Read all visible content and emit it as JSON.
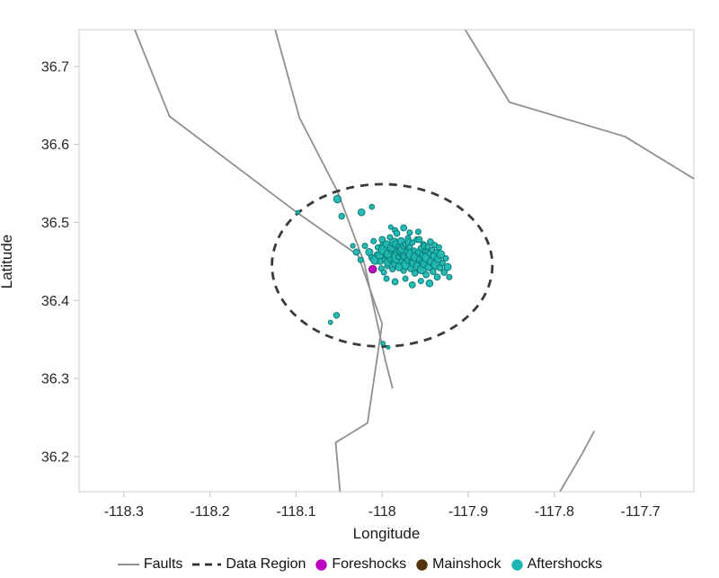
{
  "chart_data": {
    "type": "scatter",
    "title": "",
    "xlabel": "Longitude",
    "ylabel": "Latitude",
    "xlim": [
      -118.352,
      -117.638
    ],
    "ylim": [
      36.155,
      36.747
    ],
    "grid": false,
    "xticks": {
      "values": [
        -118.3,
        -118.2,
        -118.1,
        -118.0,
        -117.9,
        -117.8,
        -117.7
      ],
      "labels": [
        "-118.3",
        "-118.2",
        "-118.1",
        "-118",
        "-117.9",
        "-117.8",
        "-117.7"
      ]
    },
    "yticks": {
      "values": [
        36.2,
        36.3,
        36.4,
        36.5,
        36.6,
        36.7
      ],
      "labels": [
        "36.2",
        "36.3",
        "36.4",
        "36.5",
        "36.6",
        "36.7"
      ]
    },
    "colors": {
      "frame": "#d4d4d4",
      "tick": "#c9c9c9",
      "tick_label": "#2b2b2b",
      "fault": "#909090",
      "data_region": "#3a3a3a",
      "foreshocks": "#c000c0",
      "mainshock": "#54330e",
      "aftershocks": "#1db6b0",
      "aftershocks_edge": "#0b7d78",
      "foreshocks_edge": "#7a007a",
      "mainshock_edge": "#31190a"
    },
    "faults": [
      [
        [
          -118.287,
          36.746
        ],
        [
          -118.247,
          36.636
        ],
        [
          -118.098,
          36.512
        ],
        [
          -118.028,
          36.458
        ],
        [
          -118.0,
          36.37
        ],
        [
          -118.017,
          36.243
        ],
        [
          -118.054,
          36.218
        ],
        [
          -118.049,
          36.156
        ]
      ],
      [
        [
          -118.124,
          36.746
        ],
        [
          -118.096,
          36.634
        ],
        [
          -118.052,
          36.54
        ],
        [
          -118.021,
          36.449
        ],
        [
          -117.996,
          36.322
        ],
        [
          -117.988,
          36.288
        ]
      ],
      [
        [
          -117.903,
          36.746
        ],
        [
          -117.852,
          36.654
        ],
        [
          -117.718,
          36.61
        ],
        [
          -117.638,
          36.556
        ]
      ],
      [
        [
          -117.793,
          36.156
        ],
        [
          -117.767,
          36.205
        ],
        [
          -117.754,
          36.232
        ]
      ]
    ],
    "data_region_ellipse": {
      "center": [
        -118.0,
        36.445
      ],
      "rx": 0.128,
      "ry": 0.104,
      "dash": "9 7"
    },
    "series": [
      {
        "name": "Foreshocks",
        "color": "#c000c0",
        "z": 3,
        "points_lon_lat_r": [
          [
            -118.011,
            36.44,
            4.2
          ]
        ]
      },
      {
        "name": "Mainshock",
        "color": "#54330e",
        "z": 1,
        "points_lon_lat_r": [
          [
            -117.98,
            36.457,
            7.5
          ]
        ]
      },
      {
        "name": "Aftershocks",
        "color": "#1db6b0",
        "z": 2,
        "points_lon_lat_r": [
          [
            -118.098,
            36.513,
            2.2
          ],
          [
            -118.052,
            36.53,
            4.2
          ],
          [
            -118.047,
            36.508,
            3.2
          ],
          [
            -118.024,
            36.513,
            3.8
          ],
          [
            -118.012,
            36.52,
            2.8
          ],
          [
            -118.053,
            36.381,
            3.2
          ],
          [
            -118.06,
            36.372,
            2.4
          ],
          [
            -117.999,
            36.345,
            2.4
          ],
          [
            -117.993,
            36.34,
            2.0
          ],
          [
            -118.034,
            36.47,
            2.6
          ],
          [
            -118.03,
            36.462,
            3.4
          ],
          [
            -118.025,
            36.452,
            3.0
          ],
          [
            -118.02,
            36.47,
            3.0
          ],
          [
            -118.015,
            36.462,
            4.0
          ],
          [
            -118.012,
            36.455,
            3.4
          ],
          [
            -118.01,
            36.476,
            3.0
          ],
          [
            -118.008,
            36.452,
            5.0
          ],
          [
            -118.006,
            36.459,
            3.0
          ],
          [
            -118.005,
            36.468,
            3.0
          ],
          [
            -118.003,
            36.458,
            4.4
          ],
          [
            -118.002,
            36.45,
            3.4
          ],
          [
            -118.001,
            36.441,
            3.0
          ],
          [
            -118.0,
            36.478,
            3.4
          ],
          [
            -117.999,
            36.47,
            4.0
          ],
          [
            -117.998,
            36.465,
            5.8
          ],
          [
            -117.998,
            36.436,
            3.0
          ],
          [
            -117.997,
            36.452,
            3.0
          ],
          [
            -117.996,
            36.458,
            3.0
          ],
          [
            -117.995,
            36.472,
            4.0
          ],
          [
            -117.995,
            36.428,
            3.0
          ],
          [
            -117.994,
            36.444,
            3.0
          ],
          [
            -117.993,
            36.449,
            4.4
          ],
          [
            -117.992,
            36.46,
            5.4
          ],
          [
            -117.991,
            36.481,
            3.0
          ],
          [
            -117.99,
            36.494,
            2.5
          ],
          [
            -117.99,
            36.464,
            3.0
          ],
          [
            -117.99,
            36.452,
            3.4
          ],
          [
            -117.989,
            36.468,
            4.4
          ],
          [
            -117.988,
            36.44,
            3.0
          ],
          [
            -117.987,
            36.458,
            3.0
          ],
          [
            -117.987,
            36.449,
            3.4
          ],
          [
            -117.986,
            36.474,
            5.0
          ],
          [
            -117.985,
            36.49,
            3.0
          ],
          [
            -117.985,
            36.447,
            4.0
          ],
          [
            -117.985,
            36.424,
            3.4
          ],
          [
            -117.984,
            36.472,
            4.0
          ],
          [
            -117.984,
            36.462,
            3.0
          ],
          [
            -117.983,
            36.486,
            3.4
          ],
          [
            -117.982,
            36.455,
            6.4
          ],
          [
            -117.981,
            36.469,
            3.0
          ],
          [
            -117.981,
            36.456,
            3.0
          ],
          [
            -117.98,
            36.443,
            4.4
          ],
          [
            -117.979,
            36.46,
            3.0
          ],
          [
            -117.978,
            36.476,
            4.0
          ],
          [
            -117.978,
            36.464,
            5.0
          ],
          [
            -117.977,
            36.45,
            3.4
          ],
          [
            -117.976,
            36.466,
            5.0
          ],
          [
            -117.975,
            36.493,
            3.4
          ],
          [
            -117.975,
            36.47,
            3.4
          ],
          [
            -117.975,
            36.438,
            3.0
          ],
          [
            -117.974,
            36.457,
            4.0
          ],
          [
            -117.973,
            36.472,
            3.0
          ],
          [
            -117.973,
            36.428,
            3.0
          ],
          [
            -117.972,
            36.446,
            5.4
          ],
          [
            -117.971,
            36.462,
            3.4
          ],
          [
            -117.97,
            36.48,
            3.0
          ],
          [
            -117.969,
            36.475,
            4.0
          ],
          [
            -117.969,
            36.452,
            4.4
          ],
          [
            -117.968,
            36.487,
            3.0
          ],
          [
            -117.968,
            36.468,
            3.0
          ],
          [
            -117.967,
            36.441,
            3.4
          ],
          [
            -117.966,
            36.459,
            5.8
          ],
          [
            -117.966,
            36.45,
            3.0
          ],
          [
            -117.965,
            36.474,
            3.0
          ],
          [
            -117.965,
            36.42,
            3.4
          ],
          [
            -117.964,
            36.448,
            4.0
          ],
          [
            -117.963,
            36.464,
            3.0
          ],
          [
            -117.963,
            36.455,
            3.4
          ],
          [
            -117.962,
            36.435,
            3.4
          ],
          [
            -117.961,
            36.456,
            5.0
          ],
          [
            -117.96,
            36.478,
            3.0
          ],
          [
            -117.959,
            36.444,
            4.4
          ],
          [
            -117.958,
            36.488,
            3.0
          ],
          [
            -117.958,
            36.461,
            3.0
          ],
          [
            -117.957,
            36.478,
            3.4
          ],
          [
            -117.957,
            36.462,
            4.0
          ],
          [
            -117.956,
            36.452,
            4.0
          ],
          [
            -117.955,
            36.467,
            3.0
          ],
          [
            -117.955,
            36.425,
            3.0
          ],
          [
            -117.954,
            36.449,
            3.0
          ],
          [
            -117.954,
            36.44,
            5.0
          ],
          [
            -117.953,
            36.458,
            3.4
          ],
          [
            -117.952,
            36.472,
            3.0
          ],
          [
            -117.951,
            36.47,
            3.4
          ],
          [
            -117.951,
            36.447,
            4.4
          ],
          [
            -117.95,
            36.463,
            3.0
          ],
          [
            -117.949,
            36.433,
            3.4
          ],
          [
            -117.948,
            36.462,
            3.0
          ],
          [
            -117.948,
            36.455,
            5.4
          ],
          [
            -117.947,
            36.469,
            3.0
          ],
          [
            -117.946,
            36.443,
            4.0
          ],
          [
            -117.945,
            36.46,
            3.0
          ],
          [
            -117.945,
            36.422,
            3.8
          ],
          [
            -117.944,
            36.475,
            3.4
          ],
          [
            -117.943,
            36.45,
            4.4
          ],
          [
            -117.942,
            36.465,
            3.0
          ],
          [
            -117.941,
            36.437,
            3.4
          ],
          [
            -117.94,
            36.457,
            4.0
          ],
          [
            -117.939,
            36.471,
            3.0
          ],
          [
            -117.938,
            36.446,
            5.0
          ],
          [
            -117.937,
            36.462,
            3.0
          ],
          [
            -117.936,
            36.43,
            3.4
          ],
          [
            -117.935,
            36.453,
            4.0
          ],
          [
            -117.934,
            36.468,
            3.0
          ],
          [
            -117.933,
            36.442,
            3.4
          ],
          [
            -117.932,
            36.459,
            4.4
          ],
          [
            -117.93,
            36.448,
            3.0
          ],
          [
            -117.928,
            36.436,
            3.4
          ],
          [
            -117.926,
            36.454,
            3.0
          ],
          [
            -117.924,
            36.443,
            4.0
          ],
          [
            -117.922,
            36.43,
            3.0
          ]
        ]
      }
    ],
    "legend": {
      "position": "bottom",
      "items": [
        {
          "label": "Faults",
          "swatch": "line",
          "color": "#909090"
        },
        {
          "label": "Data Region",
          "swatch": "dashed-line",
          "color": "#2e2e2e"
        },
        {
          "label": "Foreshocks",
          "swatch": "dot",
          "color": "#c000c0"
        },
        {
          "label": "Mainshock",
          "swatch": "dot",
          "color": "#54330e"
        },
        {
          "label": "Aftershocks",
          "swatch": "dot",
          "color": "#1db6b0"
        }
      ]
    }
  }
}
